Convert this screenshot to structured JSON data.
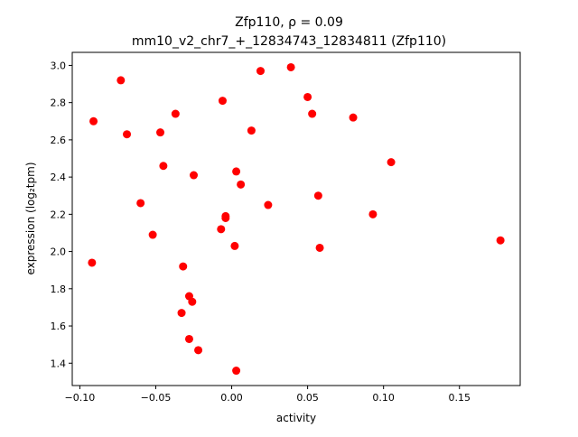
{
  "chart_data": {
    "type": "scatter",
    "title_line1": "Zfp110, ρ = 0.09",
    "title_line2": "mm10_v2_chr7_+_12834743_12834811 (Zfp110)",
    "xlabel": "activity",
    "ylabel": "expression (log₂tpm)",
    "xlim": [
      -0.105,
      0.19
    ],
    "ylim": [
      1.28,
      3.07
    ],
    "x_ticks": [
      -0.1,
      -0.05,
      0.0,
      0.05,
      0.1,
      0.15
    ],
    "x_tick_labels": [
      "−0.10",
      "−0.05",
      "0.00",
      "0.05",
      "0.10",
      "0.15"
    ],
    "y_ticks": [
      1.4,
      1.6,
      1.8,
      2.0,
      2.2,
      2.4,
      2.6,
      2.8,
      3.0
    ],
    "y_tick_labels": [
      "1.4",
      "1.6",
      "1.8",
      "2.0",
      "2.2",
      "2.4",
      "2.6",
      "2.8",
      "3.0"
    ],
    "marker_color": "#ff0000",
    "grid": false,
    "legend": "none",
    "points": [
      {
        "x": -0.091,
        "y": 2.7
      },
      {
        "x": -0.092,
        "y": 1.94
      },
      {
        "x": -0.073,
        "y": 2.92
      },
      {
        "x": -0.069,
        "y": 2.63
      },
      {
        "x": -0.06,
        "y": 2.26
      },
      {
        "x": -0.052,
        "y": 2.09
      },
      {
        "x": -0.047,
        "y": 2.64
      },
      {
        "x": -0.045,
        "y": 2.46
      },
      {
        "x": -0.037,
        "y": 2.74
      },
      {
        "x": -0.032,
        "y": 1.92
      },
      {
        "x": -0.033,
        "y": 1.67
      },
      {
        "x": -0.028,
        "y": 1.76
      },
      {
        "x": -0.026,
        "y": 1.73
      },
      {
        "x": -0.028,
        "y": 1.53
      },
      {
        "x": -0.022,
        "y": 1.47
      },
      {
        "x": -0.025,
        "y": 2.41
      },
      {
        "x": -0.006,
        "y": 2.81
      },
      {
        "x": -0.007,
        "y": 2.12
      },
      {
        "x": -0.004,
        "y": 2.19
      },
      {
        "x": -0.004,
        "y": 2.18
      },
      {
        "x": 0.002,
        "y": 2.03
      },
      {
        "x": 0.003,
        "y": 2.43
      },
      {
        "x": 0.006,
        "y": 2.36
      },
      {
        "x": 0.003,
        "y": 1.36
      },
      {
        "x": 0.013,
        "y": 2.65
      },
      {
        "x": 0.019,
        "y": 2.97
      },
      {
        "x": 0.024,
        "y": 2.25
      },
      {
        "x": 0.039,
        "y": 2.99
      },
      {
        "x": 0.05,
        "y": 2.83
      },
      {
        "x": 0.053,
        "y": 2.74
      },
      {
        "x": 0.057,
        "y": 2.3
      },
      {
        "x": 0.058,
        "y": 2.02
      },
      {
        "x": 0.08,
        "y": 2.72
      },
      {
        "x": 0.093,
        "y": 2.2
      },
      {
        "x": 0.105,
        "y": 2.48
      },
      {
        "x": 0.177,
        "y": 2.06
      }
    ]
  }
}
